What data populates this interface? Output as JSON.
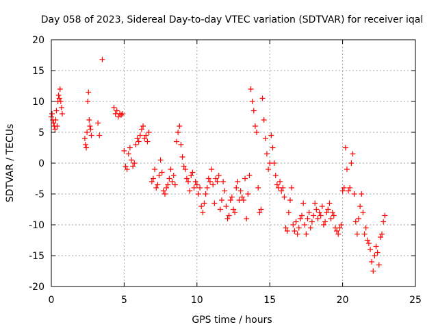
{
  "colors": {
    "marker": "#ff0000",
    "grid": "#a0a0a0",
    "frame": "#000000",
    "background": "#ffffff"
  },
  "chart_data": {
    "type": "scatter",
    "title": "Day 058 of 2023, Sidereal Day-to-day VTEC variation (SDTVAR) for receiver iqal",
    "xlabel": "GPS time / hours",
    "ylabel": "SDTVAR / TECUs",
    "xlim": [
      0,
      25
    ],
    "ylim": [
      -20,
      20
    ],
    "xticks": [
      0,
      5,
      10,
      15,
      20,
      25
    ],
    "yticks": [
      -20,
      -15,
      -10,
      -5,
      0,
      5,
      10,
      15,
      20
    ],
    "grid": true,
    "marker": "+",
    "series": [
      {
        "name": "SDTVAR",
        "x": [
          0.0,
          0.05,
          0.1,
          0.15,
          0.2,
          0.25,
          0.3,
          0.35,
          0.4,
          0.45,
          0.5,
          0.55,
          0.6,
          0.65,
          0.7,
          0.75,
          2.3,
          2.35,
          2.4,
          2.45,
          2.5,
          2.55,
          2.6,
          2.65,
          2.7,
          2.75,
          3.2,
          3.3,
          3.5,
          4.3,
          4.4,
          4.5,
          4.6,
          4.7,
          4.8,
          4.9,
          5.0,
          5.1,
          5.2,
          5.3,
          5.4,
          5.5,
          5.6,
          5.7,
          5.8,
          5.9,
          6.0,
          6.1,
          6.2,
          6.3,
          6.4,
          6.5,
          6.6,
          6.7,
          6.9,
          7.0,
          7.1,
          7.2,
          7.3,
          7.4,
          7.5,
          7.6,
          7.7,
          7.8,
          7.9,
          8.0,
          8.1,
          8.2,
          8.3,
          8.4,
          8.5,
          8.6,
          8.7,
          8.8,
          8.9,
          9.0,
          9.1,
          9.2,
          9.3,
          9.4,
          9.5,
          9.6,
          9.7,
          9.8,
          9.9,
          10.0,
          10.1,
          10.2,
          10.3,
          10.4,
          10.5,
          10.6,
          10.7,
          10.8,
          10.9,
          11.0,
          11.1,
          11.2,
          11.3,
          11.4,
          11.5,
          11.6,
          11.7,
          11.8,
          11.9,
          12.0,
          12.1,
          12.2,
          12.3,
          12.4,
          12.5,
          12.6,
          12.7,
          12.8,
          12.9,
          13.0,
          13.1,
          13.2,
          13.3,
          13.4,
          13.5,
          13.6,
          13.7,
          13.8,
          13.9,
          14.0,
          14.1,
          14.2,
          14.3,
          14.4,
          14.5,
          14.6,
          14.7,
          14.8,
          14.9,
          15.0,
          15.1,
          15.2,
          15.3,
          15.4,
          15.5,
          15.6,
          15.7,
          15.8,
          15.9,
          16.0,
          16.1,
          16.2,
          16.3,
          16.4,
          16.5,
          16.6,
          16.7,
          16.8,
          16.9,
          17.0,
          17.1,
          17.2,
          17.3,
          17.4,
          17.5,
          17.6,
          17.7,
          17.8,
          17.9,
          18.0,
          18.1,
          18.2,
          18.3,
          18.4,
          18.5,
          18.6,
          18.7,
          18.8,
          18.9,
          19.0,
          19.1,
          19.2,
          19.3,
          19.4,
          19.5,
          19.6,
          19.7,
          19.8,
          19.9,
          20.0,
          20.1,
          20.2,
          20.3,
          20.4,
          20.5,
          20.6,
          20.7,
          20.8,
          20.9,
          21.0,
          21.1,
          21.2,
          21.3,
          21.4,
          21.5,
          21.6,
          21.7,
          21.8,
          21.9,
          22.0,
          22.1,
          22.2,
          22.3,
          22.4,
          22.5,
          22.6,
          22.7,
          22.8,
          22.9
        ],
        "y": [
          7.5,
          8.0,
          7.0,
          6.5,
          6.0,
          5.5,
          7.0,
          8.5,
          6.0,
          10.0,
          11.0,
          10.5,
          12.0,
          10.0,
          9.0,
          8.0,
          4.0,
          3.0,
          2.5,
          5.0,
          10.0,
          11.5,
          7.0,
          6.0,
          5.5,
          4.5,
          6.5,
          4.5,
          16.8,
          9.0,
          8.0,
          8.5,
          7.5,
          8.0,
          7.8,
          8.0,
          2.0,
          -0.5,
          -1.0,
          1.5,
          2.5,
          0.5,
          -0.5,
          0.0,
          3.0,
          4.0,
          3.5,
          4.5,
          5.5,
          6.0,
          4.0,
          4.5,
          3.5,
          5.0,
          -3.0,
          -2.5,
          -1.0,
          -4.0,
          -3.5,
          -2.0,
          0.5,
          -1.5,
          -4.5,
          -5.0,
          -4.0,
          -3.5,
          -2.5,
          -1.0,
          -3.0,
          -2.0,
          -3.5,
          3.5,
          5.0,
          6.0,
          3.0,
          1.0,
          -0.5,
          -1.0,
          -2.5,
          -3.0,
          -4.5,
          -2.0,
          -1.5,
          -4.0,
          -3.0,
          -3.5,
          -5.0,
          -4.0,
          -7.0,
          -8.0,
          -6.5,
          -5.0,
          -4.0,
          -2.5,
          -3.0,
          -1.0,
          -3.5,
          -6.5,
          -2.5,
          -3.0,
          -2.0,
          -7.5,
          -6.0,
          -3.0,
          -4.5,
          -7.0,
          -9.0,
          -8.5,
          -6.0,
          -5.5,
          -7.5,
          -8.0,
          -4.0,
          -3.0,
          -6.0,
          -4.5,
          -5.5,
          -6.0,
          -2.5,
          -9.0,
          -5.0,
          -2.0,
          12.0,
          10.0,
          8.5,
          6.0,
          5.0,
          -4.0,
          -8.0,
          -7.5,
          10.5,
          7.0,
          4.0,
          1.5,
          -1.0,
          0.0,
          4.5,
          2.5,
          0.0,
          -2.0,
          -3.5,
          -4.0,
          -3.0,
          -4.5,
          -4.0,
          -5.5,
          -10.5,
          -11.0,
          -8.0,
          -6.0,
          -4.0,
          -10.0,
          -11.0,
          -9.5,
          -11.5,
          -10.5,
          -9.0,
          -8.5,
          -6.5,
          -10.0,
          -11.5,
          -9.0,
          -8.0,
          -10.5,
          -9.5,
          -8.5,
          -6.5,
          -7.5,
          -9.0,
          -8.0,
          -8.5,
          -7.0,
          -10.0,
          -9.5,
          -8.0,
          -7.5,
          -6.5,
          -9.0,
          -8.0,
          -8.5,
          -10.5,
          -11.0,
          -11.5,
          -10.5,
          -10.0,
          -4.5,
          -4.0,
          2.5,
          -1.0,
          -4.5,
          -4.0,
          0.0,
          1.5,
          -5.0,
          -9.5,
          -11.5,
          -9.0,
          -7.0,
          -5.0,
          -8.0,
          -11.5,
          -10.5,
          -12.5,
          -13.0,
          -14.0,
          -16.0,
          -17.5,
          -15.0,
          -13.5,
          -14.5,
          -16.5,
          -12.0,
          -11.5,
          -9.5,
          -8.5
        ]
      }
    ]
  }
}
